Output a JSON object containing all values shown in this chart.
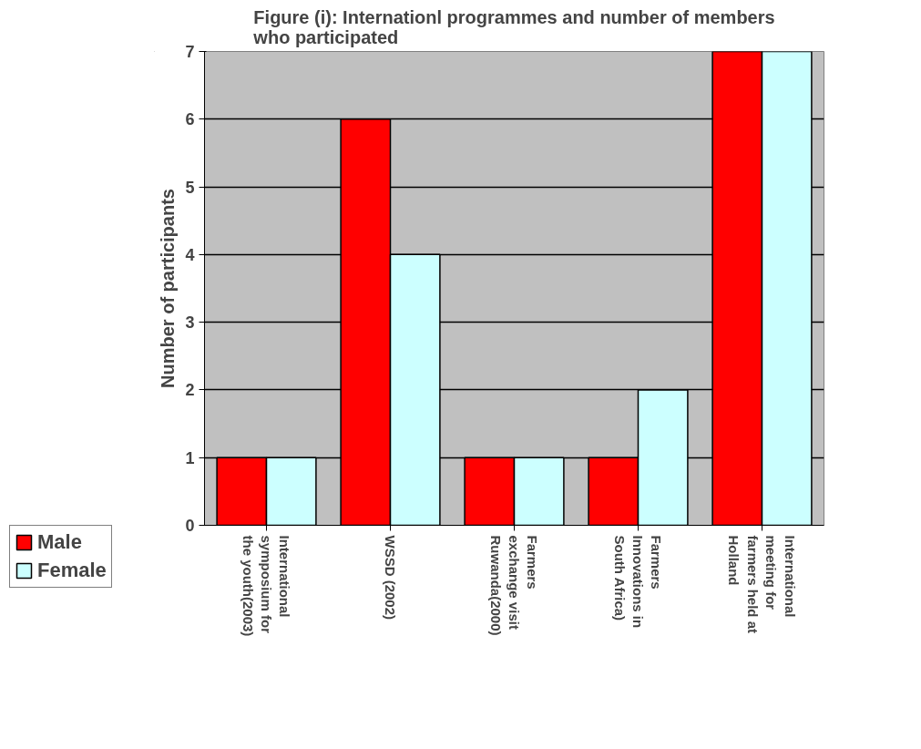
{
  "chart_data": {
    "type": "bar",
    "title": "Figure (i): Internationl programmes and number of members\nwho participated",
    "ylabel": "Number of participants",
    "categories": [
      "International\nsymposium for\nthe youth(2003)",
      "WSSD (2002)",
      "Farmers\nexchange visit\nRuwanda(2000)",
      "Farmers\nInnovations in\nSouth Africa)",
      "International\nmeeting for\nfarmers held at\nHolland"
    ],
    "series": [
      {
        "name": "Male",
        "color": "#ff0000",
        "values": [
          1,
          6,
          1,
          1,
          7
        ]
      },
      {
        "name": "Female",
        "color": "#ccffff",
        "values": [
          1,
          4,
          1,
          2,
          7
        ]
      }
    ],
    "ylim": [
      0,
      7
    ],
    "yticks": [
      0,
      1,
      2,
      3,
      4,
      5,
      6,
      7
    ],
    "grid": "y",
    "legend": "bottom left"
  }
}
